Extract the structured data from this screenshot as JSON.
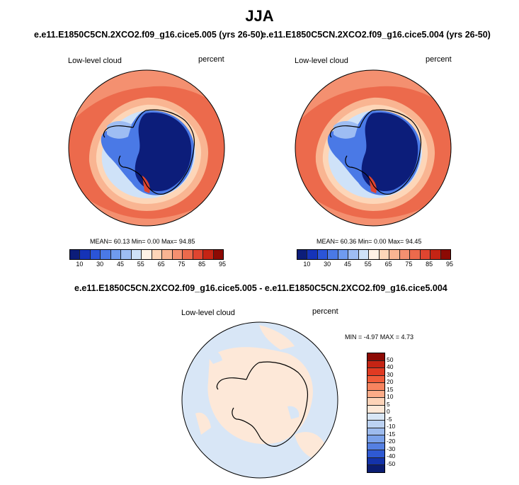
{
  "title": "JJA",
  "panels": [
    {
      "subtitle": "e.e11.E1850C5CN.2XCO2.f09_g16.cice5.005 (yrs 26-50)",
      "left_label": "Low-level cloud",
      "right_label": "percent",
      "stats": "MEAN= 60.13 Min= 0.00 Max= 94.85"
    },
    {
      "subtitle": "e.e11.E1850C5CN.2XCO2.f09_g16.cice5.004 (yrs 26-50)",
      "left_label": "Low-level cloud",
      "right_label": "percent",
      "stats": "MEAN= 60.36 Min= 0.00 Max= 94.45"
    }
  ],
  "colorbar": {
    "colors": [
      "#0c1d7a",
      "#1533b8",
      "#2b55d8",
      "#4a79e6",
      "#6f9bef",
      "#9ebdf3",
      "#cfe2f8",
      "#fff2e6",
      "#fdd6b8",
      "#f9b592",
      "#f49070",
      "#ec6a4c",
      "#df4530",
      "#c52414",
      "#8c0a04"
    ],
    "ticks": [
      "10",
      "30",
      "45",
      "55",
      "65",
      "75",
      "85",
      "95"
    ]
  },
  "diff": {
    "subtitle": "e.e11.E1850C5CN.2XCO2.f09_g16.cice5.005 - e.e11.E1850C5CN.2XCO2.f09_g16.cice5.004",
    "left_label": "Low-level cloud",
    "right_label": "percent",
    "stats": "MIN = -4.97 MAX = 4.73",
    "colors": [
      "#8c0a04",
      "#c52414",
      "#e03a22",
      "#f05c3a",
      "#f7845f",
      "#fbab88",
      "#fdd3b8",
      "#fde8d8",
      "#d8e6f6",
      "#bcd2f2",
      "#9dbbee",
      "#7aa1ea",
      "#5580e2",
      "#2f59d2",
      "#1433aa",
      "#0b1d72"
    ],
    "ticks": [
      "50",
      "40",
      "30",
      "20",
      "15",
      "10",
      "5",
      "0",
      "-5",
      "-10",
      "-15",
      "-20",
      "-30",
      "-40",
      "-50"
    ]
  }
}
